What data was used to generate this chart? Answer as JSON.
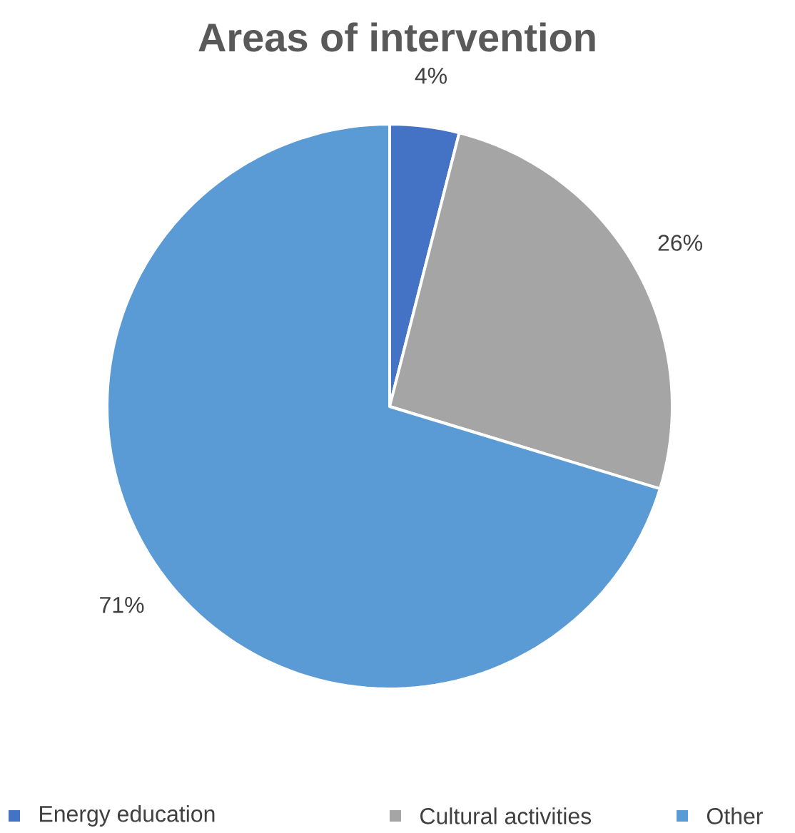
{
  "chart_data": {
    "type": "pie",
    "title": "Areas of intervention",
    "categories": [
      "Energy education",
      "Cultural activities",
      "Other"
    ],
    "values": [
      4,
      26,
      71
    ],
    "colors": [
      "#4472c4",
      "#a5a5a5",
      "#5b9bd5"
    ],
    "value_labels": [
      "4%",
      "26%",
      "71%"
    ],
    "legend": "bottom"
  }
}
